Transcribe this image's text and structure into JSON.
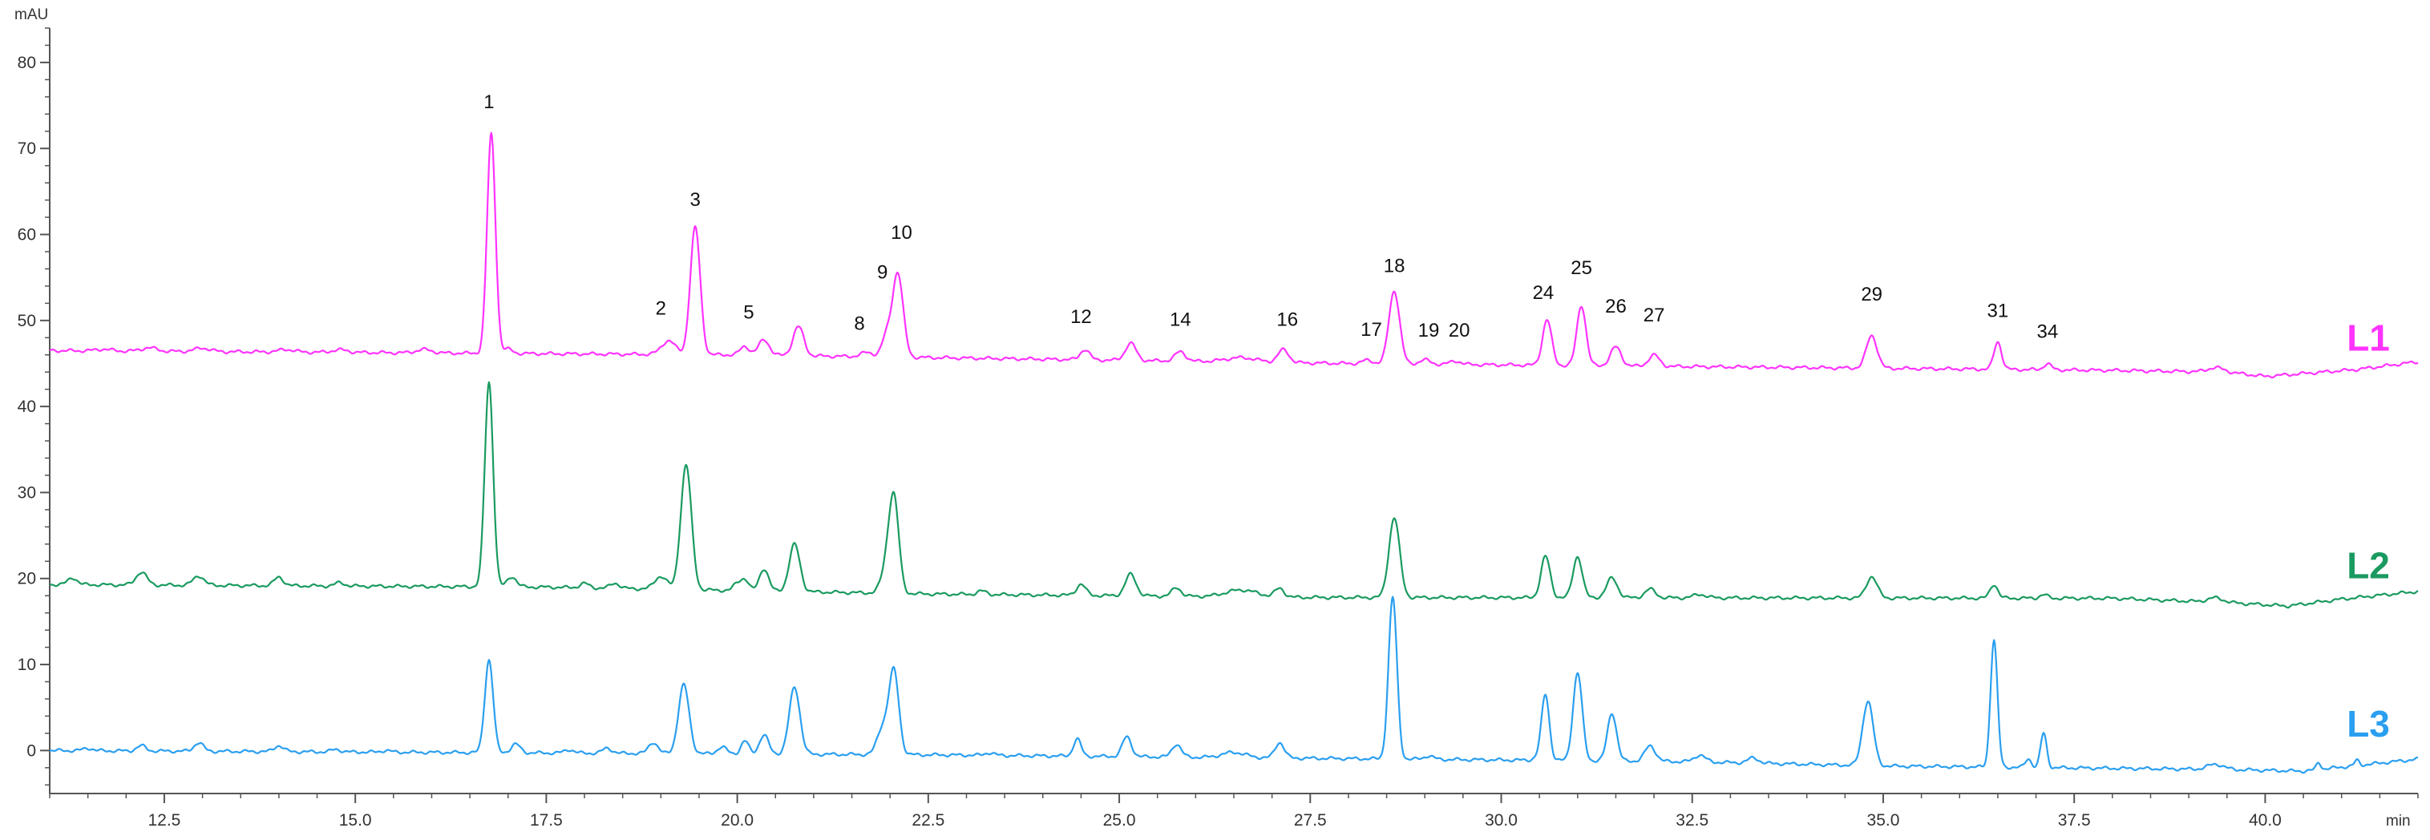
{
  "chart_data": {
    "type": "line",
    "y_unit_label": "mAU",
    "x_unit_label": "min",
    "xlim": [
      11.0,
      42.0
    ],
    "ylim": [
      -5,
      84
    ],
    "x_ticks": [
      12.5,
      15.0,
      17.5,
      20.0,
      22.5,
      25.0,
      27.5,
      30.0,
      32.5,
      35.0,
      37.5,
      40.0
    ],
    "x_tick_labels": [
      "12.5",
      "15.0",
      "17.5",
      "20.0",
      "22.5",
      "25.0",
      "27.5",
      "30.0",
      "32.5",
      "35.0",
      "37.5",
      "40.0"
    ],
    "y_ticks": [
      0,
      10,
      20,
      30,
      40,
      50,
      60,
      70,
      80
    ],
    "y_tick_labels": [
      "0",
      "10",
      "20",
      "30",
      "40",
      "50",
      "60",
      "70",
      "80"
    ],
    "colors": {
      "L1": "#ff33ff",
      "L2": "#1a9a60",
      "L3": "#2a9ff0",
      "axis": "#555555"
    },
    "series": [
      {
        "name": "L1",
        "color": "#ff33ff",
        "baseline": [
          [
            11.0,
            46.5
          ],
          [
            20.0,
            46.0
          ],
          [
            28.0,
            45.0
          ],
          [
            38.0,
            44.2
          ],
          [
            39.5,
            44.0
          ],
          [
            40.0,
            43.5
          ],
          [
            41.2,
            44.3
          ],
          [
            42.0,
            45.2
          ]
        ],
        "peaks": [
          [
            11.7,
            0.2,
            0.1
          ],
          [
            12.3,
            0.4,
            0.1
          ],
          [
            13.0,
            0.4,
            0.1
          ],
          [
            14.1,
            0.3,
            0.1
          ],
          [
            14.8,
            0.3,
            0.1
          ],
          [
            15.9,
            0.4,
            0.1
          ],
          [
            16.78,
            25.5,
            0.055
          ],
          [
            17.0,
            0.5,
            0.06
          ],
          [
            19.1,
            1.6,
            0.09
          ],
          [
            19.45,
            14.8,
            0.065
          ],
          [
            20.1,
            1.0,
            0.06
          ],
          [
            20.35,
            1.8,
            0.07
          ],
          [
            20.8,
            3.4,
            0.07
          ],
          [
            21.7,
            0.5,
            0.08
          ],
          [
            21.95,
            2.2,
            0.06
          ],
          [
            22.1,
            9.8,
            0.07
          ],
          [
            24.55,
            1.2,
            0.06
          ],
          [
            25.15,
            2.0,
            0.07
          ],
          [
            25.8,
            1.1,
            0.07
          ],
          [
            26.6,
            0.5,
            0.2
          ],
          [
            27.15,
            1.5,
            0.07
          ],
          [
            28.25,
            0.4,
            0.07
          ],
          [
            28.6,
            8.5,
            0.07
          ],
          [
            29.0,
            0.5,
            0.07
          ],
          [
            29.4,
            0.4,
            0.07
          ],
          [
            30.6,
            5.3,
            0.06
          ],
          [
            31.05,
            7.0,
            0.06
          ],
          [
            31.5,
            2.2,
            0.07
          ],
          [
            32.0,
            1.3,
            0.07
          ],
          [
            34.85,
            3.8,
            0.07
          ],
          [
            36.5,
            3.2,
            0.05
          ],
          [
            37.15,
            0.7,
            0.05
          ],
          [
            39.35,
            0.5,
            0.1
          ]
        ]
      },
      {
        "name": "L2",
        "color": "#1a9a60",
        "baseline": [
          [
            11.0,
            19.3
          ],
          [
            17.5,
            19.0
          ],
          [
            22.5,
            18.2
          ],
          [
            27.5,
            17.8
          ],
          [
            38.0,
            17.7
          ],
          [
            39.5,
            17.2
          ],
          [
            40.3,
            16.8
          ],
          [
            41.0,
            17.6
          ],
          [
            42.0,
            18.5
          ]
        ],
        "peaks": [
          [
            11.3,
            0.8,
            0.06
          ],
          [
            12.2,
            1.5,
            0.07
          ],
          [
            12.95,
            1.1,
            0.07
          ],
          [
            14.0,
            1.0,
            0.06
          ],
          [
            14.8,
            0.4,
            0.06
          ],
          [
            16.75,
            23.8,
            0.055
          ],
          [
            17.05,
            1.2,
            0.06
          ],
          [
            18.0,
            0.5,
            0.06
          ],
          [
            18.4,
            0.6,
            0.06
          ],
          [
            19.0,
            1.5,
            0.08
          ],
          [
            19.33,
            14.5,
            0.07
          ],
          [
            20.0,
            0.8,
            0.05
          ],
          [
            20.1,
            1.3,
            0.05
          ],
          [
            20.35,
            2.6,
            0.06
          ],
          [
            20.75,
            5.5,
            0.07
          ],
          [
            21.95,
            2.5,
            0.07
          ],
          [
            22.05,
            10.8,
            0.065
          ],
          [
            23.2,
            0.4,
            0.06
          ],
          [
            24.5,
            1.3,
            0.06
          ],
          [
            25.15,
            2.5,
            0.07
          ],
          [
            25.75,
            1.0,
            0.06
          ],
          [
            26.6,
            0.8,
            0.2
          ],
          [
            27.1,
            1.0,
            0.06
          ],
          [
            28.6,
            9.3,
            0.07
          ],
          [
            30.58,
            4.8,
            0.06
          ],
          [
            31.0,
            4.8,
            0.06
          ],
          [
            31.45,
            2.3,
            0.07
          ],
          [
            31.95,
            1.0,
            0.07
          ],
          [
            32.6,
            0.4,
            0.08
          ],
          [
            34.85,
            2.5,
            0.07
          ],
          [
            36.45,
            1.6,
            0.05
          ],
          [
            37.1,
            0.4,
            0.05
          ],
          [
            39.35,
            0.5,
            0.1
          ]
        ]
      },
      {
        "name": "L3",
        "color": "#2a9ff0",
        "baseline": [
          [
            11.0,
            0.0
          ],
          [
            22.5,
            -0.5
          ],
          [
            32.5,
            -1.3
          ],
          [
            35.0,
            -1.8
          ],
          [
            39.5,
            -2.2
          ],
          [
            40.5,
            -2.4
          ],
          [
            42.0,
            -1.0
          ]
        ],
        "peaks": [
          [
            11.5,
            0.3,
            0.06
          ],
          [
            12.2,
            0.6,
            0.06
          ],
          [
            12.95,
            1.0,
            0.06
          ],
          [
            14.0,
            0.7,
            0.06
          ],
          [
            14.75,
            0.3,
            0.06
          ],
          [
            15.4,
            0.2,
            0.06
          ],
          [
            16.75,
            10.8,
            0.055
          ],
          [
            17.1,
            1.0,
            0.06
          ],
          [
            17.8,
            0.4,
            0.06
          ],
          [
            18.3,
            0.6,
            0.06
          ],
          [
            18.9,
            1.3,
            0.06
          ],
          [
            19.3,
            8.0,
            0.07
          ],
          [
            19.8,
            0.8,
            0.06
          ],
          [
            20.1,
            1.5,
            0.05
          ],
          [
            20.35,
            2.2,
            0.06
          ],
          [
            20.75,
            7.8,
            0.07
          ],
          [
            21.9,
            3.0,
            0.07
          ],
          [
            22.05,
            9.7,
            0.065
          ],
          [
            23.3,
            0.3,
            0.06
          ],
          [
            24.45,
            2.0,
            0.05
          ],
          [
            25.1,
            2.3,
            0.06
          ],
          [
            25.75,
            1.5,
            0.06
          ],
          [
            26.5,
            0.6,
            0.15
          ],
          [
            27.1,
            1.8,
            0.06
          ],
          [
            28.58,
            18.8,
            0.055
          ],
          [
            29.05,
            0.4,
            0.06
          ],
          [
            30.5,
            0.5,
            0.06
          ],
          [
            30.58,
            7.5,
            0.05
          ],
          [
            31.0,
            10.2,
            0.06
          ],
          [
            31.45,
            5.6,
            0.06
          ],
          [
            31.95,
            1.8,
            0.07
          ],
          [
            32.6,
            0.8,
            0.07
          ],
          [
            33.3,
            0.6,
            0.07
          ],
          [
            34.8,
            7.5,
            0.07
          ],
          [
            36.45,
            14.8,
            0.045
          ],
          [
            36.9,
            1.0,
            0.04
          ],
          [
            37.1,
            4.0,
            0.04
          ],
          [
            39.35,
            0.6,
            0.1
          ],
          [
            40.7,
            0.8,
            0.03
          ],
          [
            41.2,
            0.6,
            0.03
          ]
        ]
      }
    ],
    "trace_labels": [
      {
        "text": "L1",
        "x": 41.35,
        "y": 46.5,
        "color": "#ff33ff"
      },
      {
        "text": "L2",
        "x": 41.35,
        "y": 20.0,
        "color": "#1a9a60"
      },
      {
        "text": "L3",
        "x": 41.35,
        "y": 1.6,
        "color": "#2a9ff0"
      }
    ],
    "peak_labels": [
      {
        "text": "1",
        "x": 16.75,
        "y": 74.7
      },
      {
        "text": "2",
        "x": 19.0,
        "y": 50.7
      },
      {
        "text": "3",
        "x": 19.45,
        "y": 63.3
      },
      {
        "text": "5",
        "x": 20.15,
        "y": 50.2
      },
      {
        "text": "8",
        "x": 21.6,
        "y": 48.9
      },
      {
        "text": "9",
        "x": 21.9,
        "y": 54.9
      },
      {
        "text": "10",
        "x": 22.15,
        "y": 59.5
      },
      {
        "text": "12",
        "x": 24.5,
        "y": 49.7
      },
      {
        "text": "14",
        "x": 25.8,
        "y": 49.4
      },
      {
        "text": "16",
        "x": 27.2,
        "y": 49.4
      },
      {
        "text": "17",
        "x": 28.3,
        "y": 48.2
      },
      {
        "text": "18",
        "x": 28.6,
        "y": 55.6
      },
      {
        "text": "19",
        "x": 29.05,
        "y": 48.1
      },
      {
        "text": "20",
        "x": 29.45,
        "y": 48.1
      },
      {
        "text": "24",
        "x": 30.55,
        "y": 52.5
      },
      {
        "text": "25",
        "x": 31.05,
        "y": 55.4
      },
      {
        "text": "26",
        "x": 31.5,
        "y": 50.9
      },
      {
        "text": "27",
        "x": 32.0,
        "y": 49.9
      },
      {
        "text": "29",
        "x": 34.85,
        "y": 52.3
      },
      {
        "text": "31",
        "x": 36.5,
        "y": 50.4
      },
      {
        "text": "34",
        "x": 37.15,
        "y": 48.0
      }
    ],
    "grid": false,
    "legend": "right-of-traces"
  }
}
